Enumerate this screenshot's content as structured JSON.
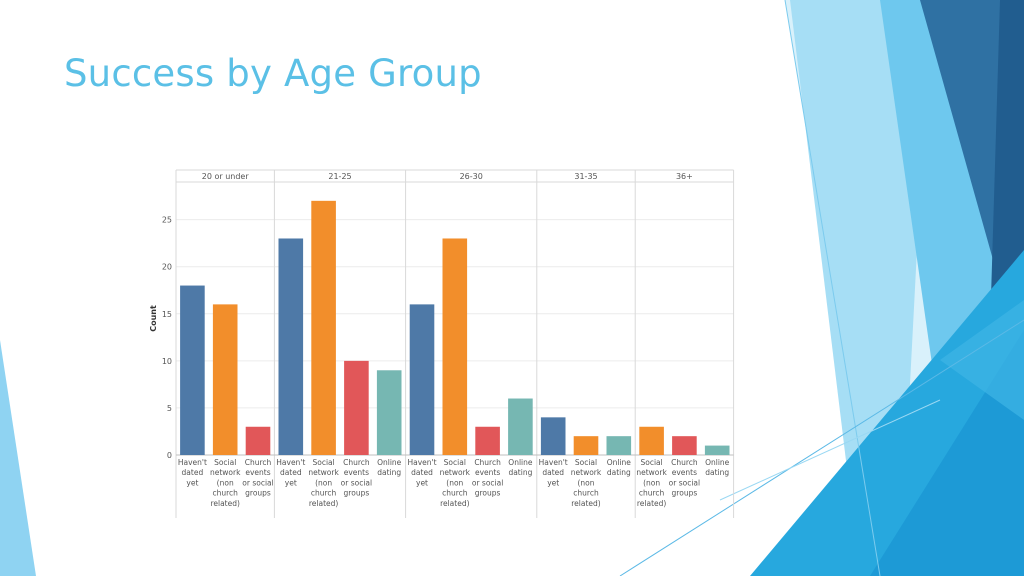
{
  "slide": {
    "title": "Success by Age Group",
    "accent_colors": [
      "#2d6fa1",
      "#5bc0e6",
      "#1e9fd8",
      "#9fdaf3",
      "#d7f0fa"
    ]
  },
  "chart_data": {
    "type": "bar",
    "ylabel": "Count",
    "ylim": [
      0,
      29
    ],
    "yticks": [
      0,
      5,
      10,
      15,
      20,
      25
    ],
    "grid": true,
    "colors": {
      "Haven't dated yet": "#4e79a7",
      "Social network (non church related)": "#f28e2b",
      "Church events or social groups": "#e15759",
      "Online dating": "#76b7b2"
    },
    "panels": [
      {
        "label": "20 or under",
        "bars": [
          {
            "category": "Haven't dated yet",
            "lines": [
              "Haven't",
              "dated",
              "yet"
            ],
            "value": 18
          },
          {
            "category": "Social network (non church related)",
            "lines": [
              "Social",
              "network",
              "(non",
              "church",
              "related)"
            ],
            "value": 16
          },
          {
            "category": "Church events or social groups",
            "lines": [
              "Church",
              "events",
              "or social",
              "groups"
            ],
            "value": 3
          }
        ]
      },
      {
        "label": "21-25",
        "bars": [
          {
            "category": "Haven't dated yet",
            "lines": [
              "Haven't",
              "dated",
              "yet"
            ],
            "value": 23
          },
          {
            "category": "Social network (non church related)",
            "lines": [
              "Social",
              "network",
              "(non",
              "church",
              "related)"
            ],
            "value": 27
          },
          {
            "category": "Church events or social groups",
            "lines": [
              "Church",
              "events",
              "or social",
              "groups"
            ],
            "value": 10
          },
          {
            "category": "Online dating",
            "lines": [
              "Online",
              "dating"
            ],
            "value": 9
          }
        ]
      },
      {
        "label": "26-30",
        "bars": [
          {
            "category": "Haven't dated yet",
            "lines": [
              "Haven't",
              "dated",
              "yet"
            ],
            "value": 16
          },
          {
            "category": "Social network (non church related)",
            "lines": [
              "Social",
              "network",
              "(non",
              "church",
              "related)"
            ],
            "value": 23
          },
          {
            "category": "Church events or social groups",
            "lines": [
              "Church",
              "events",
              "or social",
              "groups"
            ],
            "value": 3
          },
          {
            "category": "Online dating",
            "lines": [
              "Online",
              "dating"
            ],
            "value": 6
          }
        ]
      },
      {
        "label": "31-35",
        "bars": [
          {
            "category": "Haven't dated yet",
            "lines": [
              "Haven't",
              "dated",
              "yet"
            ],
            "value": 4
          },
          {
            "category": "Social network (non church related)",
            "lines": [
              "Social",
              "network",
              "(non",
              "church",
              "related)"
            ],
            "value": 2
          },
          {
            "category": "Online dating",
            "lines": [
              "Online",
              "dating"
            ],
            "value": 2
          }
        ]
      },
      {
        "label": "36+",
        "bars": [
          {
            "category": "Social network (non church related)",
            "lines": [
              "Social",
              "network",
              "(non",
              "church",
              "related)"
            ],
            "value": 3
          },
          {
            "category": "Church events or social groups",
            "lines": [
              "Church",
              "events",
              "or social",
              "groups"
            ],
            "value": 2
          },
          {
            "category": "Online dating",
            "lines": [
              "Online",
              "dating"
            ],
            "value": 1
          }
        ]
      }
    ]
  }
}
